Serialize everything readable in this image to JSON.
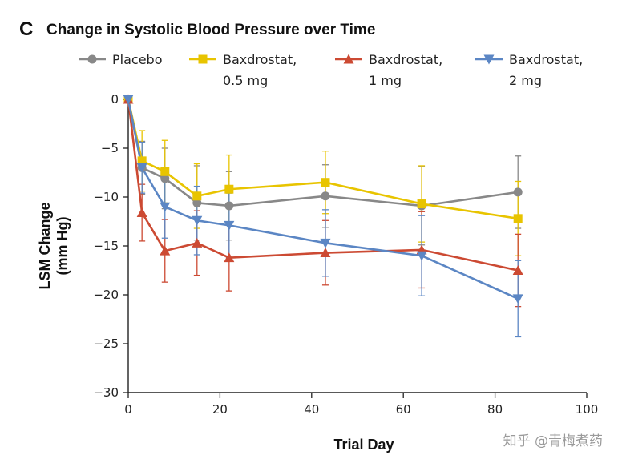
{
  "panel_letter": "C",
  "watermark": "知乎 @青梅煮药",
  "chart_data": {
    "type": "line",
    "title": "Change in Systolic Blood Pressure over Time",
    "xlabel": "Trial Day",
    "ylabel_lines": [
      "LSM Change",
      "(mm Hg)"
    ],
    "xlim": [
      0,
      100
    ],
    "ylim": [
      -30,
      0
    ],
    "xticks": [
      0,
      20,
      40,
      60,
      80,
      100
    ],
    "yticks": [
      0,
      -5,
      -10,
      -15,
      -20,
      -25,
      -30
    ],
    "xtick_labels": [
      "0",
      "20",
      "40",
      "60",
      "80",
      "100"
    ],
    "ytick_labels": [
      "0",
      "−5",
      "−10",
      "−15",
      "−20",
      "−25",
      "−30"
    ],
    "legend_position": "top",
    "series": [
      {
        "name": "Placebo",
        "legend_lines": [
          "Placebo"
        ],
        "color": "#888888",
        "marker": "circle",
        "x": [
          0,
          3,
          8,
          15,
          22,
          43,
          64,
          85
        ],
        "y": [
          0,
          -7.0,
          -8.1,
          -10.6,
          -10.9,
          -9.9,
          -10.9,
          -9.5
        ],
        "err": [
          0,
          2.7,
          3.1,
          3.8,
          3.5,
          3.2,
          4.0,
          3.7
        ]
      },
      {
        "name": "Baxdrostat, 0.5 mg",
        "legend_lines": [
          "Baxdrostat,",
          "0.5 mg"
        ],
        "color": "#e8c400",
        "marker": "square",
        "x": [
          0,
          3,
          8,
          15,
          22,
          43,
          64,
          85
        ],
        "y": [
          0,
          -6.3,
          -7.4,
          -9.9,
          -9.2,
          -8.5,
          -10.7,
          -12.2
        ],
        "err": [
          0,
          3.1,
          3.2,
          3.3,
          3.5,
          3.2,
          3.9,
          3.8
        ]
      },
      {
        "name": "Baxdrostat, 1 mg",
        "legend_lines": [
          "Baxdrostat,",
          "1 mg"
        ],
        "color": "#cc4a33",
        "marker": "triangle-up",
        "x": [
          0,
          3,
          8,
          15,
          22,
          43,
          64,
          85
        ],
        "y": [
          0,
          -11.6,
          -15.5,
          -14.7,
          -16.2,
          -15.7,
          -15.4,
          -17.5
        ],
        "err": [
          0,
          2.9,
          3.2,
          3.3,
          3.4,
          3.3,
          3.9,
          3.7
        ]
      },
      {
        "name": "Baxdrostat, 2 mg",
        "legend_lines": [
          "Baxdrostat,",
          "2 mg"
        ],
        "color": "#5b86c4",
        "marker": "triangle-down",
        "x": [
          0,
          3,
          8,
          15,
          22,
          43,
          64,
          85
        ],
        "y": [
          0,
          -7.0,
          -11.0,
          -12.4,
          -12.9,
          -14.7,
          -16.0,
          -20.4
        ],
        "err": [
          0,
          2.6,
          3.2,
          3.5,
          3.3,
          3.4,
          4.1,
          3.9
        ]
      }
    ]
  }
}
